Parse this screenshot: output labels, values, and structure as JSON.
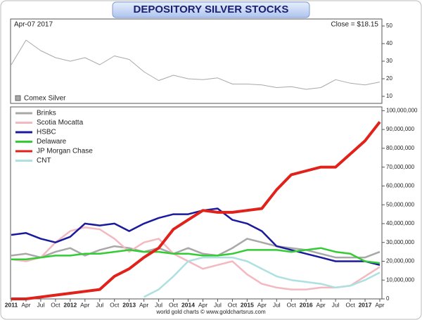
{
  "title": "DEPOSITORY SILVER STOCKS",
  "footer": "world gold charts © www.goldchartsrus.com",
  "chart_data": [
    {
      "type": "line",
      "date_label": "Apr-07  2017",
      "close_label": "Close = $18.15",
      "ylim": [
        6,
        54
      ],
      "yticks": [
        10,
        20,
        30,
        40,
        50
      ],
      "grid": false,
      "series": [
        {
          "name": "Comex Silver",
          "color": "#a8a8a8",
          "values": [
            28,
            42,
            36,
            32,
            30,
            32,
            28,
            33,
            31,
            24,
            19,
            22,
            20,
            19.5,
            20.5,
            17,
            17,
            16.5,
            15,
            15.5,
            14,
            15,
            19.5,
            17.5,
            16.5,
            18.15
          ]
        }
      ]
    },
    {
      "type": "line",
      "legend": "top-left",
      "grid": false,
      "categories": [
        "2011",
        "Apr",
        "Jul",
        "Oct",
        "2012",
        "Apr",
        "Jul",
        "Oct",
        "2013",
        "Apr",
        "Jul",
        "Oct",
        "2014",
        "Apr",
        "Jul",
        "Oct",
        "2015",
        "Apr",
        "Jul",
        "Oct",
        "2016",
        "Apr",
        "Jul",
        "Oct",
        "2017",
        "Apr"
      ],
      "ylim": [
        0,
        102000000
      ],
      "yticks": [
        {
          "value": 0,
          "label": "0"
        },
        {
          "value": 10000000,
          "label": "10,000,000"
        },
        {
          "value": 20000000,
          "label": "20,000,000"
        },
        {
          "value": 30000000,
          "label": "30,000,000"
        },
        {
          "value": 40000000,
          "label": "40,000,000"
        },
        {
          "value": 50000000,
          "label": "50,000,000"
        },
        {
          "value": 60000000,
          "label": "60,000,000"
        },
        {
          "value": 70000000,
          "label": "70,000,000"
        },
        {
          "value": 80000000,
          "label": "80,000,000"
        },
        {
          "value": 90000000,
          "label": "90,000,000"
        },
        {
          "value": 100000000,
          "label": "100,000,000"
        }
      ],
      "series": [
        {
          "name": "Brinks",
          "color": "#a8a8a8",
          "width": 2.5,
          "values": [
            23000000,
            24000000,
            22000000,
            25000000,
            27000000,
            23000000,
            26000000,
            28000000,
            27000000,
            25000000,
            27000000,
            24000000,
            27000000,
            24000000,
            23000000,
            27000000,
            32000000,
            30000000,
            28000000,
            27000000,
            26000000,
            24000000,
            22000000,
            22000000,
            22000000,
            25000000
          ]
        },
        {
          "name": "Scotia Mocatta",
          "color": "#f4b8c0",
          "width": 2.5,
          "values": [
            21000000,
            20000000,
            22000000,
            30000000,
            36000000,
            38000000,
            37000000,
            32000000,
            25000000,
            30000000,
            32000000,
            24000000,
            20000000,
            16000000,
            18000000,
            20000000,
            13000000,
            8000000,
            6000000,
            5000000,
            5000000,
            6000000,
            6000000,
            7000000,
            12000000,
            17000000
          ]
        },
        {
          "name": "HSBC",
          "color": "#1a1a9c",
          "width": 2.5,
          "values": [
            34000000,
            35000000,
            32000000,
            30000000,
            33000000,
            40000000,
            39000000,
            40000000,
            36000000,
            40000000,
            43000000,
            45000000,
            45000000,
            47000000,
            48000000,
            42000000,
            40000000,
            36000000,
            28000000,
            26000000,
            24000000,
            22000000,
            20000000,
            20000000,
            20000000,
            18000000
          ]
        },
        {
          "name": "Delaware",
          "color": "#33cc33",
          "width": 2.5,
          "values": [
            21000000,
            21000000,
            22000000,
            23000000,
            23000000,
            24000000,
            24000000,
            25000000,
            26000000,
            25000000,
            25000000,
            24000000,
            24000000,
            23000000,
            23000000,
            24000000,
            26000000,
            26000000,
            26000000,
            25000000,
            26000000,
            27000000,
            25000000,
            24000000,
            20000000,
            19000000
          ]
        },
        {
          "name": "JP Morgan Chase",
          "color": "#e0221a",
          "width": 4,
          "values": [
            0,
            0,
            1000000,
            2000000,
            3000000,
            4000000,
            5000000,
            12000000,
            16000000,
            22000000,
            27000000,
            37000000,
            42000000,
            47000000,
            46000000,
            46000000,
            47000000,
            48000000,
            58000000,
            66000000,
            68000000,
            70000000,
            70000000,
            77000000,
            84000000,
            94000000
          ]
        },
        {
          "name": "CNT",
          "color": "#aee0e0",
          "width": 2.5,
          "values": [
            null,
            null,
            null,
            null,
            null,
            null,
            null,
            null,
            null,
            1000000,
            5000000,
            12000000,
            20000000,
            22000000,
            22000000,
            22000000,
            20000000,
            16000000,
            12000000,
            10000000,
            9000000,
            8000000,
            6000000,
            7000000,
            10000000,
            14000000
          ]
        }
      ]
    }
  ]
}
